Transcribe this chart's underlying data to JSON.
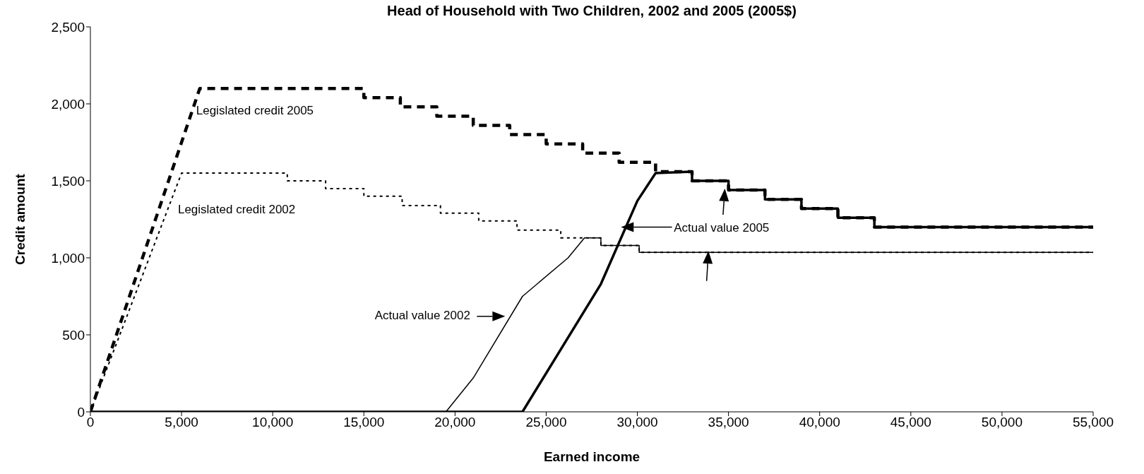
{
  "chart_data": {
    "type": "line",
    "title": "Head of Household with Two Children, 2002 and 2005 (2005$)",
    "xlabel": "Earned income",
    "ylabel": "Credit amount",
    "xlim": [
      0,
      55000
    ],
    "xticks": [
      0,
      {
        "value": 5000,
        "label": "5,000"
      },
      {
        "value": 10000,
        "label": "10,000"
      },
      {
        "value": 15000,
        "label": "15,000"
      },
      {
        "value": 20000,
        "label": "20,000"
      },
      {
        "value": 25000,
        "label": "25,000"
      },
      {
        "value": 30000,
        "label": "30,000"
      },
      {
        "value": 35000,
        "label": "35,000"
      },
      {
        "value": 40000,
        "label": "40,000"
      },
      {
        "value": 45000,
        "label": "45,000"
      },
      {
        "value": 50000,
        "label": "50,000"
      },
      {
        "value": 55000,
        "label": "55,000"
      }
    ],
    "ylim": [
      0,
      2500
    ],
    "yticks": [
      0,
      500,
      {
        "value": 1000,
        "label": "1,000"
      },
      {
        "value": 1500,
        "label": "1,500"
      },
      {
        "value": 2000,
        "label": "2,000"
      },
      {
        "value": 2500,
        "label": "2,500"
      }
    ],
    "marker": "none",
    "series": [
      {
        "name": "Legislated credit 2005",
        "color": "#000000",
        "line_style": "dashed",
        "x": [
          0,
          6000,
          15000,
          15000,
          17000,
          17000,
          19000,
          19000,
          21000,
          21000,
          23000,
          23000,
          25000,
          25000,
          27000,
          27000,
          29000,
          29000,
          31000,
          31000,
          33000,
          33000,
          35000,
          35000,
          37000,
          37000,
          39000,
          39000,
          41000,
          41000,
          43000,
          43000,
          55000
        ],
        "values": [
          0,
          2100,
          2100,
          2040,
          2040,
          1980,
          1980,
          1920,
          1920,
          1860,
          1860,
          1800,
          1800,
          1740,
          1740,
          1680,
          1680,
          1620,
          1620,
          1560,
          1560,
          1500,
          1500,
          1440,
          1440,
          1380,
          1380,
          1320,
          1320,
          1260,
          1260,
          1200,
          1200
        ]
      },
      {
        "name": "Legislated credit 2002",
        "color": "#000000",
        "line_style": "dotted",
        "x": [
          0,
          5000,
          10800,
          10800,
          12900,
          12900,
          15000,
          15000,
          17100,
          17100,
          19200,
          19200,
          21300,
          21300,
          23400,
          23400,
          25800,
          25800,
          27000,
          27000,
          28000,
          28000,
          30100,
          30100,
          55000
        ],
        "values": [
          0,
          1550,
          1550,
          1500,
          1500,
          1450,
          1450,
          1400,
          1400,
          1340,
          1340,
          1290,
          1290,
          1240,
          1240,
          1180,
          1180,
          1130,
          1130,
          1130,
          1130,
          1080,
          1080,
          1035,
          1035
        ]
      },
      {
        "name": "Actual value 2002",
        "color": "#000000",
        "line_style": "solid",
        "x": [
          0,
          19500,
          21000,
          23700,
          26200,
          27100,
          28000,
          28000,
          30100,
          30100,
          55000
        ],
        "values": [
          0,
          0,
          220,
          750,
          1000,
          1130,
          1130,
          1080,
          1080,
          1035,
          1035
        ]
      },
      {
        "name": "Actual value 2005",
        "color": "#000000",
        "line_style": "solid",
        "x": [
          0,
          23700,
          28000,
          30000,
          31000,
          33000,
          33000,
          35000,
          35000,
          37000,
          37000,
          39000,
          39000,
          41000,
          41000,
          43000,
          43000,
          55000
        ],
        "values": [
          0,
          0,
          830,
          1370,
          1550,
          1560,
          1500,
          1500,
          1440,
          1440,
          1380,
          1380,
          1320,
          1320,
          1260,
          1260,
          1200,
          1200
        ]
      }
    ]
  }
}
